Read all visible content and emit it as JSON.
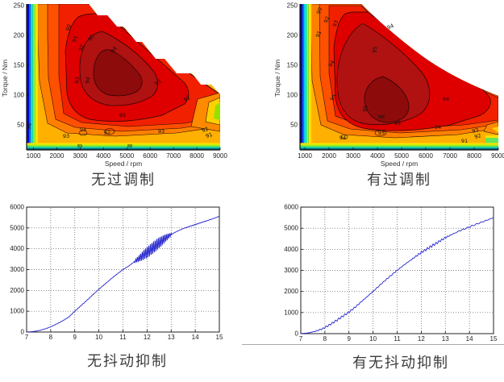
{
  "captions": {
    "top_left": "无过调制",
    "top_right": "有过调制",
    "bottom_left": "无抖动抑制",
    "bottom_right": "有无抖动抑制"
  },
  "colors": {
    "line_blue": "#2222CC",
    "jet_low": "#000085",
    "jet_high": "#8E0B0B"
  },
  "chart_data": [
    {
      "id": "efficiency-map-no-overmodulation",
      "type": "contour",
      "title": "无过调制",
      "xlabel": "Speed  / rpm",
      "ylabel": "Torque / Nm",
      "xlim": [
        500,
        9000
      ],
      "ylim": [
        0,
        260
      ],
      "x_ticks": [
        1000,
        2000,
        3000,
        4000,
        5000,
        6000,
        7000,
        8000,
        9000
      ],
      "y_ticks": [
        50,
        100,
        150,
        200,
        250
      ],
      "levels_labeled": [
        88,
        89,
        90,
        91,
        92,
        93,
        94,
        95,
        96
      ],
      "colormap": "jet",
      "peak_region": {
        "speed_rpm": [
          3000,
          5000
        ],
        "torque_nm": [
          60,
          160
        ],
        "efficiency_pct": 95
      },
      "contour_labels": [
        "90",
        "91",
        "92",
        "93",
        "94",
        "95",
        "94",
        "93",
        "92",
        "95",
        "94",
        "93",
        "92",
        "93",
        "92",
        "91",
        "96",
        "89",
        "88"
      ]
    },
    {
      "id": "efficiency-map-with-overmodulation",
      "type": "contour",
      "title": "有过调制",
      "xlabel": "Speed  / rpm",
      "ylabel": "Torque / Nm",
      "xlim": [
        500,
        9000
      ],
      "ylim": [
        0,
        260
      ],
      "x_ticks": [
        1000,
        2000,
        3000,
        4000,
        5000,
        6000,
        7000,
        8000,
        9000
      ],
      "y_ticks": [
        50,
        100,
        150,
        200,
        250
      ],
      "levels_labeled": [
        90,
        91,
        92,
        93,
        94,
        95,
        96
      ],
      "colormap": "jet",
      "peak_region": {
        "speed_rpm": [
          3200,
          5000
        ],
        "torque_nm": [
          50,
          130
        ],
        "efficiency_pct": 96
      },
      "contour_labels": [
        "90",
        "92",
        "93",
        "91",
        "94",
        "95",
        "94",
        "95",
        "95",
        "96",
        "95",
        "94",
        "94",
        "93",
        "94",
        "93",
        "92",
        "91"
      ]
    },
    {
      "id": "speed-response-no-dither-suppression",
      "type": "line",
      "title": "无抖动抑制",
      "xlim": [
        7,
        15
      ],
      "ylim": [
        0,
        6000
      ],
      "x_ticks": [
        7,
        8,
        9,
        10,
        11,
        12,
        13,
        14,
        15
      ],
      "y_ticks": [
        0,
        1000,
        2000,
        3000,
        4000,
        5000,
        6000
      ],
      "grid": "dotted",
      "line_color": "#2222CC",
      "points": [
        [
          7,
          5
        ],
        [
          7.2,
          15
        ],
        [
          7.4,
          45
        ],
        [
          7.6,
          95
        ],
        [
          7.8,
          165
        ],
        [
          8,
          250
        ],
        [
          8.25,
          390
        ],
        [
          8.5,
          540
        ],
        [
          8.75,
          720
        ],
        [
          9,
          1000
        ],
        [
          9.25,
          1260
        ],
        [
          9.5,
          1520
        ],
        [
          9.75,
          1790
        ],
        [
          10,
          2060
        ],
        [
          10.25,
          2300
        ],
        [
          10.5,
          2550
        ],
        [
          10.75,
          2780
        ],
        [
          11,
          3000
        ],
        [
          11.25,
          3180
        ],
        [
          11.5,
          3400
        ],
        [
          11.75,
          3600
        ],
        [
          12,
          3820
        ],
        [
          12.25,
          4050
        ],
        [
          12.5,
          4280
        ],
        [
          12.75,
          4500
        ],
        [
          13,
          4690
        ],
        [
          13.25,
          4840
        ],
        [
          13.5,
          4970
        ],
        [
          13.75,
          5070
        ],
        [
          14,
          5160
        ],
        [
          14.25,
          5260
        ],
        [
          14.5,
          5350
        ],
        [
          14.75,
          5450
        ],
        [
          15,
          5560
        ]
      ],
      "noise": [
        {
          "from": 11.45,
          "to": 13.05,
          "amplitude": 290,
          "cycles": 24
        },
        {
          "from": 7.4,
          "to": 11.4,
          "amplitude": 12,
          "cycles": 40
        },
        {
          "from": 13.1,
          "to": 15,
          "amplitude": 15,
          "cycles": 22
        }
      ]
    },
    {
      "id": "speed-response-with-dither-suppression",
      "type": "line",
      "title": "有无抖动抑制",
      "xlim": [
        7,
        15
      ],
      "ylim": [
        0,
        6000
      ],
      "x_ticks": [
        7,
        8,
        9,
        10,
        11,
        12,
        13,
        14,
        15
      ],
      "y_ticks": [
        0,
        1000,
        2000,
        3000,
        4000,
        5000,
        6000
      ],
      "grid": "dotted",
      "line_color": "#2222CC",
      "points": [
        [
          7,
          5
        ],
        [
          7.3,
          30
        ],
        [
          7.6,
          110
        ],
        [
          7.9,
          230
        ],
        [
          8.2,
          420
        ],
        [
          8.5,
          640
        ],
        [
          8.8,
          870
        ],
        [
          9,
          1020
        ],
        [
          9.2,
          1200
        ],
        [
          9.5,
          1500
        ],
        [
          9.8,
          1800
        ],
        [
          10,
          2000
        ],
        [
          10.3,
          2320
        ],
        [
          10.6,
          2620
        ],
        [
          11,
          3000
        ],
        [
          11.3,
          3270
        ],
        [
          11.6,
          3520
        ],
        [
          12,
          3850
        ],
        [
          12.4,
          4130
        ],
        [
          12.7,
          4340
        ],
        [
          13,
          4550
        ],
        [
          13.3,
          4720
        ],
        [
          13.6,
          4880
        ],
        [
          14,
          5060
        ],
        [
          14.4,
          5240
        ],
        [
          14.7,
          5370
        ],
        [
          15,
          5500
        ]
      ],
      "noise": [
        {
          "from": 7.5,
          "to": 9.7,
          "amplitude": 45,
          "cycles": 17
        },
        {
          "from": 9.7,
          "to": 11.5,
          "amplitude": 22,
          "cycles": 13
        },
        {
          "from": 11.5,
          "to": 13.3,
          "amplitude": 55,
          "cycles": 15
        },
        {
          "from": 13.3,
          "to": 15,
          "amplitude": 28,
          "cycles": 9
        }
      ]
    }
  ]
}
